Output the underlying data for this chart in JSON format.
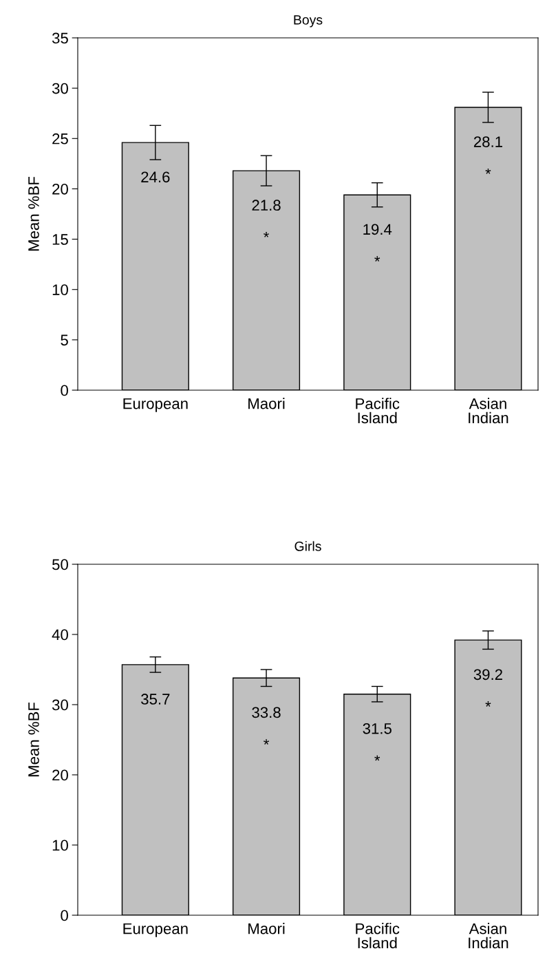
{
  "chart_data": [
    {
      "type": "bar",
      "title": "Boys",
      "ylabel": "Mean %BF",
      "categories": [
        "European",
        "Maori",
        "Pacific\nIsland",
        "Asian\nIndian"
      ],
      "values": [
        24.6,
        21.8,
        19.4,
        28.1
      ],
      "errors": [
        1.7,
        1.5,
        1.2,
        1.5
      ],
      "color": "#c0c0c0",
      "ylim": [
        0,
        35
      ],
      "yticks": [
        0,
        5,
        10,
        15,
        20,
        25,
        30,
        35
      ],
      "value_labels": [
        "24.6",
        "21.8\n*",
        "19.4\n*",
        "28.1\n*"
      ],
      "grid": false
    },
    {
      "type": "bar",
      "title": "Girls",
      "ylabel": "Mean %BF",
      "categories": [
        "European",
        "Maori",
        "Pacific\nIsland",
        "Asian\nIndian"
      ],
      "values": [
        35.7,
        33.8,
        31.5,
        39.2
      ],
      "errors": [
        1.1,
        1.2,
        1.1,
        1.3
      ],
      "color": "#c0c0c0",
      "ylim": [
        0,
        50
      ],
      "yticks": [
        0,
        10,
        20,
        30,
        40,
        50
      ],
      "value_labels": [
        "35.7",
        "33.8\n*",
        "31.5\n*",
        "39.2\n*"
      ],
      "grid": false
    }
  ]
}
